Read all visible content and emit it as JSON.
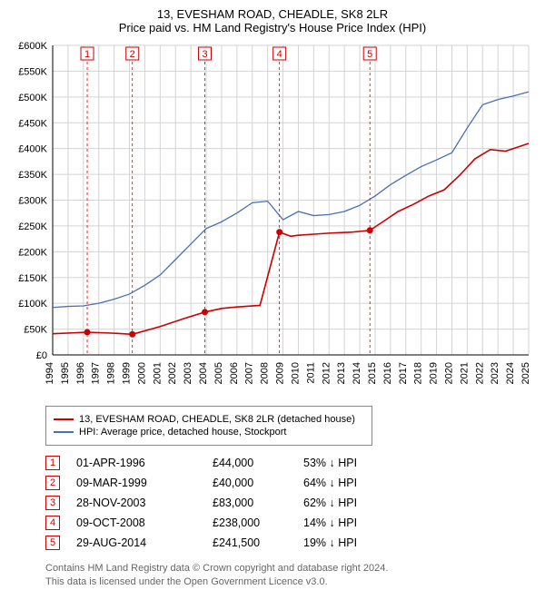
{
  "title_line1": "13, EVESHAM ROAD, CHEADLE, SK8 2LR",
  "title_line2": "Price paid vs. HM Land Registry's House Price Index (HPI)",
  "chart": {
    "type": "line",
    "background_color": "#ffffff",
    "grid_color": "#d3d3d3",
    "axis_color": "#000000",
    "title_fontsize": 13,
    "tick_fontsize": 11,
    "x": {
      "min": 1994,
      "max": 2025,
      "ticks": [
        1994,
        1995,
        1996,
        1997,
        1998,
        1999,
        2000,
        2001,
        2002,
        2003,
        2004,
        2005,
        2006,
        2007,
        2008,
        2009,
        2010,
        2011,
        2012,
        2013,
        2014,
        2015,
        2016,
        2017,
        2018,
        2019,
        2020,
        2021,
        2022,
        2023,
        2024,
        2025
      ]
    },
    "y": {
      "min": 0,
      "max": 600000,
      "ticks": [
        0,
        50000,
        100000,
        150000,
        200000,
        250000,
        300000,
        350000,
        400000,
        450000,
        500000,
        550000,
        600000
      ],
      "tick_labels": [
        "£0",
        "£50K",
        "£100K",
        "£150K",
        "£200K",
        "£250K",
        "£300K",
        "£350K",
        "£400K",
        "£450K",
        "£500K",
        "£550K",
        "£600K"
      ]
    },
    "series": [
      {
        "name": "property",
        "label": "13, EVESHAM ROAD, CHEADLE, SK8 2LR (detached house)",
        "color": "#cc0000",
        "line_width": 1.6,
        "points": [
          [
            1994,
            41000
          ],
          [
            1996.25,
            44000
          ],
          [
            1998,
            42000
          ],
          [
            1999.19,
            40000
          ],
          [
            2001,
            55000
          ],
          [
            2002.5,
            70000
          ],
          [
            2003.91,
            83000
          ],
          [
            2005,
            90000
          ],
          [
            2006,
            93000
          ],
          [
            2007.5,
            96000
          ],
          [
            2008.77,
            238000
          ],
          [
            2009.5,
            230000
          ],
          [
            2010,
            232000
          ],
          [
            2011,
            234000
          ],
          [
            2012,
            236000
          ],
          [
            2013.5,
            238000
          ],
          [
            2014.66,
            241500
          ],
          [
            2015.5,
            258000
          ],
          [
            2016.5,
            278000
          ],
          [
            2017.5,
            292000
          ],
          [
            2018.5,
            308000
          ],
          [
            2019.5,
            320000
          ],
          [
            2020.5,
            348000
          ],
          [
            2021.5,
            380000
          ],
          [
            2022.5,
            398000
          ],
          [
            2023.5,
            395000
          ],
          [
            2024.5,
            405000
          ],
          [
            2025,
            410000
          ]
        ]
      },
      {
        "name": "hpi",
        "label": "HPI: Average price, detached house, Stockport",
        "color": "#4a6fb5",
        "line_width": 1.3,
        "points": [
          [
            1994,
            92000
          ],
          [
            1995,
            94000
          ],
          [
            1996,
            95000
          ],
          [
            1997,
            100000
          ],
          [
            1998,
            108000
          ],
          [
            1999,
            118000
          ],
          [
            2000,
            135000
          ],
          [
            2001,
            155000
          ],
          [
            2002,
            185000
          ],
          [
            2003,
            215000
          ],
          [
            2004,
            245000
          ],
          [
            2005,
            258000
          ],
          [
            2006,
            275000
          ],
          [
            2007,
            295000
          ],
          [
            2008,
            298000
          ],
          [
            2009,
            262000
          ],
          [
            2010,
            278000
          ],
          [
            2011,
            270000
          ],
          [
            2012,
            272000
          ],
          [
            2013,
            278000
          ],
          [
            2014,
            290000
          ],
          [
            2015,
            308000
          ],
          [
            2016,
            330000
          ],
          [
            2017,
            348000
          ],
          [
            2018,
            365000
          ],
          [
            2019,
            378000
          ],
          [
            2020,
            392000
          ],
          [
            2021,
            440000
          ],
          [
            2022,
            485000
          ],
          [
            2023,
            495000
          ],
          [
            2024,
            502000
          ],
          [
            2025,
            510000
          ]
        ]
      }
    ],
    "markers": [
      {
        "n": "1",
        "year": 1996.25,
        "price": 44000
      },
      {
        "n": "2",
        "year": 1999.19,
        "price": 40000
      },
      {
        "n": "3",
        "year": 2003.91,
        "price": 83000
      },
      {
        "n": "4",
        "year": 2008.77,
        "price": 238000
      },
      {
        "n": "5",
        "year": 2014.66,
        "price": 241500
      }
    ],
    "marker_box": {
      "stroke": "#cc0000",
      "fill": "#ffffff",
      "size": 14,
      "fontsize": 11
    },
    "marker_guide": {
      "stroke": "#cc0000",
      "dash": "3,3",
      "width": 0.8
    },
    "marker_dot": {
      "fill": "#cc0000",
      "r": 3.5
    }
  },
  "legend": {
    "series1_label": "13, EVESHAM ROAD, CHEADLE, SK8 2LR (detached house)",
    "series1_color": "#cc0000",
    "series2_label": "HPI: Average price, detached house, Stockport",
    "series2_color": "#4a6fb5"
  },
  "transactions": [
    {
      "n": "1",
      "date": "01-APR-1996",
      "price": "£44,000",
      "pct": "53% ↓ HPI"
    },
    {
      "n": "2",
      "date": "09-MAR-1999",
      "price": "£40,000",
      "pct": "64% ↓ HPI"
    },
    {
      "n": "3",
      "date": "28-NOV-2003",
      "price": "£83,000",
      "pct": "62% ↓ HPI"
    },
    {
      "n": "4",
      "date": "09-OCT-2008",
      "price": "£238,000",
      "pct": "14% ↓ HPI"
    },
    {
      "n": "5",
      "date": "29-AUG-2014",
      "price": "£241,500",
      "pct": "19% ↓ HPI"
    }
  ],
  "footnote_line1": "Contains HM Land Registry data © Crown copyright and database right 2024.",
  "footnote_line2": "This data is licensed under the Open Government Licence v3.0."
}
